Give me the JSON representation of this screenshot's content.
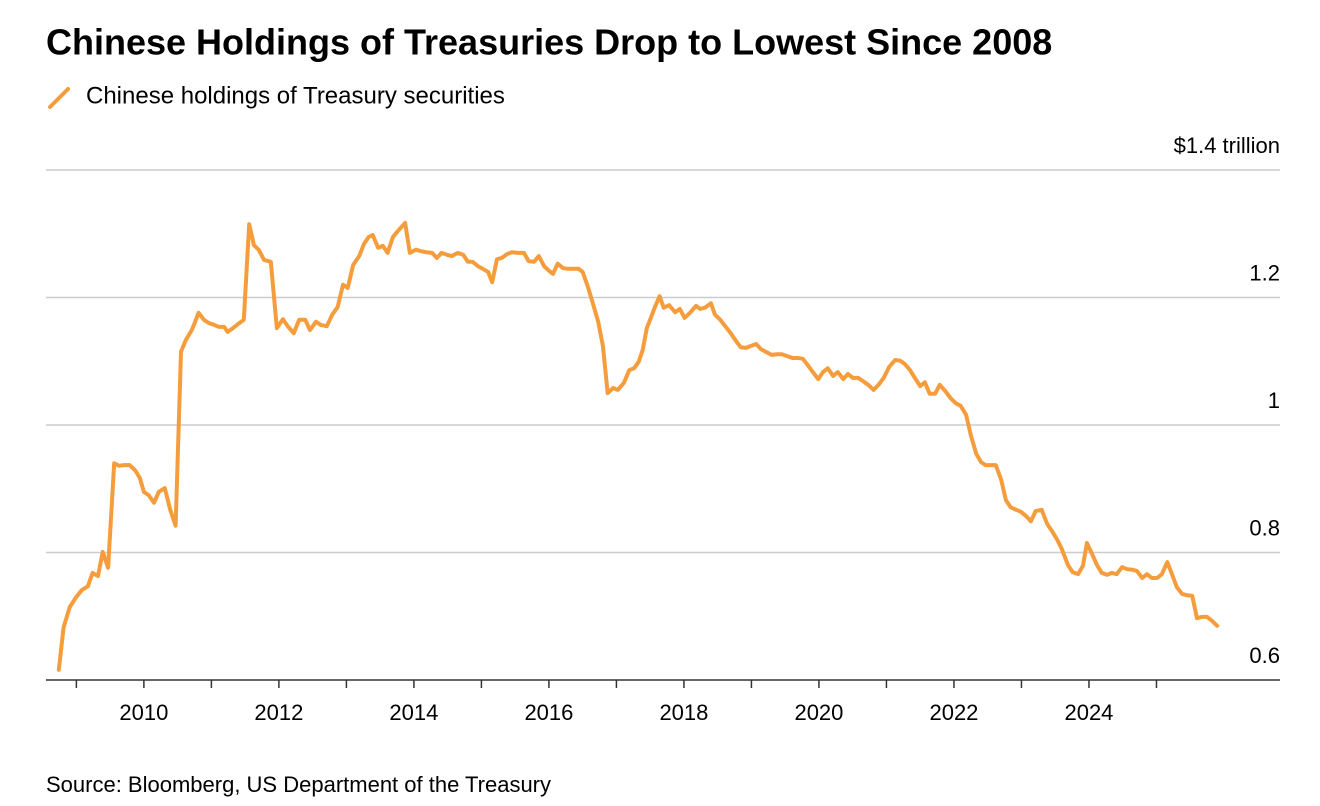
{
  "chart_data": {
    "type": "line",
    "title": "Chinese Holdings of Treasuries Drop to Lowest Since 2008",
    "source": "Source: Bloomberg, US Department of the Treasury",
    "xlim": [
      2008.55,
      2026.83
    ],
    "xticks": [
      2010,
      2012,
      2014,
      2016,
      2018,
      2020,
      2022,
      2024
    ],
    "x_minor_ticks": [
      2009,
      2011,
      2013,
      2015,
      2017,
      2019,
      2021,
      2023,
      2025
    ],
    "ylim": [
      0.6,
      1.4
    ],
    "yticks": [
      0.6,
      0.8,
      1.0,
      1.2,
      {
        "value": 1.4,
        "label": "$1.4 trillion"
      }
    ],
    "grid": true,
    "x": [
      2008.74,
      2008.81,
      2008.9,
      2008.99,
      2009.08,
      2009.17,
      2009.24,
      2009.32,
      2009.39,
      2009.47,
      2009.56,
      2009.63,
      2009.7,
      2009.79,
      2009.87,
      2009.94,
      2010.0,
      2010.07,
      2010.15,
      2010.22,
      2010.31,
      2010.39,
      2010.47,
      2010.55,
      2010.62,
      2010.71,
      2010.76,
      2010.81,
      2010.89,
      2010.96,
      2011.04,
      2011.11,
      2011.19,
      2011.24,
      2011.32,
      2011.39,
      2011.48,
      2011.56,
      2011.63,
      2011.7,
      2011.78,
      2011.88,
      2011.97,
      2012.06,
      2012.13,
      2012.22,
      2012.3,
      2012.39,
      2012.46,
      2012.55,
      2012.62,
      2012.71,
      2012.79,
      2012.87,
      2012.95,
      2013.02,
      2013.1,
      2013.19,
      2013.26,
      2013.33,
      2013.39,
      2013.47,
      2013.54,
      2013.61,
      2013.69,
      2013.76,
      2013.87,
      2013.94,
      2014.03,
      2014.09,
      2014.18,
      2014.27,
      2014.34,
      2014.41,
      2014.49,
      2014.56,
      2014.65,
      2014.73,
      2014.8,
      2014.87,
      2014.95,
      2015.02,
      2015.1,
      2015.16,
      2015.23,
      2015.3,
      2015.38,
      2015.45,
      2015.54,
      2015.63,
      2015.7,
      2015.78,
      2015.85,
      2015.93,
      2016.0,
      2016.06,
      2016.13,
      2016.21,
      2016.28,
      2016.37,
      2016.44,
      2016.5,
      2016.58,
      2016.65,
      2016.73,
      2016.8,
      2016.87,
      2016.95,
      2017.02,
      2017.11,
      2017.19,
      2017.26,
      2017.33,
      2017.39,
      2017.45,
      2017.51,
      2017.57,
      2017.64,
      2017.7,
      2017.78,
      2017.87,
      2017.94,
      2018.01,
      2018.09,
      2018.18,
      2018.24,
      2018.31,
      2018.4,
      2018.46,
      2018.53,
      2018.62,
      2018.7,
      2018.77,
      2018.84,
      2018.92,
      2018.99,
      2019.07,
      2019.14,
      2019.21,
      2019.3,
      2019.38,
      2019.45,
      2019.53,
      2019.61,
      2019.69,
      2019.76,
      2019.84,
      2019.91,
      2019.99,
      2020.06,
      2020.13,
      2020.21,
      2020.28,
      2020.36,
      2020.43,
      2020.5,
      2020.58,
      2020.65,
      2020.73,
      2020.81,
      2020.89,
      2020.96,
      2021.04,
      2021.13,
      2021.2,
      2021.27,
      2021.35,
      2021.42,
      2021.5,
      2021.57,
      2021.64,
      2021.72,
      2021.79,
      2021.88,
      2021.96,
      2022.03,
      2022.1,
      2022.18,
      2022.25,
      2022.33,
      2022.4,
      2022.47,
      2022.55,
      2022.62,
      2022.7,
      2022.77,
      2022.84,
      2022.92,
      2022.99,
      2023.07,
      2023.14,
      2023.21,
      2023.3,
      2023.38,
      2023.45,
      2023.53,
      2023.6,
      2023.69,
      2023.76,
      2023.84,
      2023.91,
      2023.97,
      2024.04,
      2024.12,
      2024.19,
      2024.27,
      2024.34,
      2024.41,
      2024.49,
      2024.56,
      2024.64,
      2024.71,
      2024.79,
      2024.86,
      2024.93,
      2025.01,
      2025.08,
      2025.16,
      2025.23,
      2025.3,
      2025.38,
      2025.45,
      2025.53,
      2025.6,
      2025.67,
      2025.75,
      2025.82,
      2025.9
    ],
    "series": [
      {
        "name": "Chinese holdings of Treasury securities",
        "color": "#f59d3d",
        "values": [
          0.616,
          0.682,
          0.714,
          0.729,
          0.741,
          0.747,
          0.768,
          0.763,
          0.801,
          0.776,
          0.94,
          0.936,
          0.937,
          0.937,
          0.929,
          0.917,
          0.895,
          0.89,
          0.878,
          0.895,
          0.901,
          0.867,
          0.842,
          1.115,
          1.133,
          1.149,
          1.162,
          1.176,
          1.165,
          1.16,
          1.157,
          1.154,
          1.154,
          1.146,
          1.152,
          1.158,
          1.165,
          1.315,
          1.282,
          1.275,
          1.259,
          1.256,
          1.152,
          1.166,
          1.155,
          1.144,
          1.165,
          1.165,
          1.149,
          1.162,
          1.157,
          1.155,
          1.173,
          1.185,
          1.22,
          1.215,
          1.251,
          1.265,
          1.284,
          1.295,
          1.298,
          1.278,
          1.281,
          1.27,
          1.295,
          1.304,
          1.317,
          1.27,
          1.275,
          1.273,
          1.271,
          1.27,
          1.262,
          1.27,
          1.267,
          1.265,
          1.27,
          1.267,
          1.256,
          1.256,
          1.249,
          1.245,
          1.24,
          1.224,
          1.26,
          1.262,
          1.268,
          1.271,
          1.27,
          1.27,
          1.257,
          1.256,
          1.265,
          1.249,
          1.242,
          1.237,
          1.253,
          1.246,
          1.245,
          1.245,
          1.245,
          1.24,
          1.216,
          1.191,
          1.162,
          1.124,
          1.05,
          1.058,
          1.055,
          1.066,
          1.086,
          1.089,
          1.099,
          1.118,
          1.152,
          1.168,
          1.185,
          1.202,
          1.184,
          1.188,
          1.177,
          1.182,
          1.168,
          1.176,
          1.187,
          1.182,
          1.184,
          1.191,
          1.173,
          1.166,
          1.154,
          1.143,
          1.132,
          1.122,
          1.121,
          1.124,
          1.127,
          1.119,
          1.115,
          1.11,
          1.111,
          1.111,
          1.108,
          1.105,
          1.105,
          1.104,
          1.093,
          1.083,
          1.072,
          1.083,
          1.089,
          1.077,
          1.083,
          1.072,
          1.08,
          1.074,
          1.074,
          1.069,
          1.063,
          1.055,
          1.064,
          1.074,
          1.091,
          1.102,
          1.101,
          1.096,
          1.086,
          1.074,
          1.061,
          1.067,
          1.049,
          1.049,
          1.063,
          1.052,
          1.041,
          1.034,
          1.03,
          1.016,
          0.984,
          0.955,
          0.942,
          0.937,
          0.937,
          0.937,
          0.914,
          0.882,
          0.871,
          0.867,
          0.864,
          0.857,
          0.849,
          0.865,
          0.867,
          0.845,
          0.834,
          0.82,
          0.805,
          0.78,
          0.769,
          0.766,
          0.779,
          0.815,
          0.799,
          0.78,
          0.768,
          0.765,
          0.768,
          0.766,
          0.777,
          0.774,
          0.773,
          0.771,
          0.76,
          0.766,
          0.76,
          0.76,
          0.766,
          0.785,
          0.766,
          0.746,
          0.735,
          0.733,
          0.732,
          0.697,
          0.699,
          0.699,
          0.693,
          0.685
        ]
      }
    ]
  }
}
